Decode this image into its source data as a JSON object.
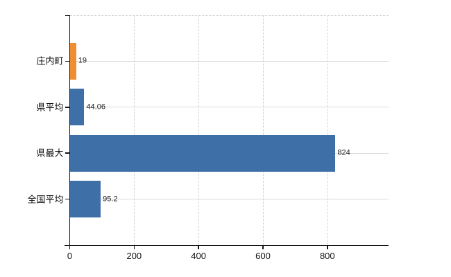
{
  "chart_data": {
    "type": "bar",
    "orientation": "horizontal",
    "title": "",
    "xlabel": "",
    "ylabel": "",
    "categories": [
      "庄内町",
      "県平均",
      "県最大",
      "全国平均"
    ],
    "values": [
      19,
      44.06,
      824,
      95.2
    ],
    "value_labels": [
      "19",
      "44.06",
      "824",
      "95.2"
    ],
    "bar_colors": [
      "#ee8e30",
      "#3f6fa7",
      "#3f6fa7",
      "#3f6fa7"
    ],
    "x_tick_values": [
      0,
      200,
      400,
      600,
      800
    ],
    "x_tick_labels": [
      "0",
      "200",
      "400",
      "600",
      "800"
    ],
    "xlim": [
      0,
      990
    ],
    "grid": true,
    "gridline_style": {
      "vertical": "dashed",
      "horizontal": "solid",
      "top_border": "dashed"
    },
    "legend": null
  },
  "colors": {
    "bar_highlight": "#ee8e30",
    "bar_default": "#3f6fa7",
    "grid": "#d5dad5",
    "axis": "#161616",
    "text": "#111111",
    "background": "#ffffff"
  }
}
